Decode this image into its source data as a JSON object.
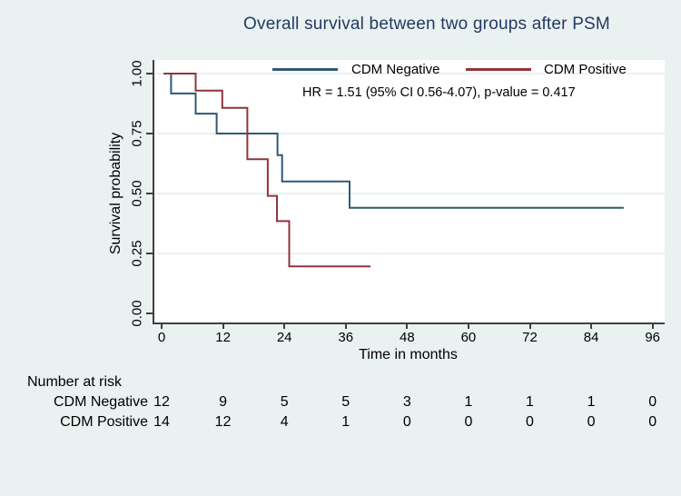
{
  "title": "Overall survival between two groups after PSM",
  "annotation": "HR = 1.51 (95% CI 0.56-4.07), p-value = 0.417",
  "colors": {
    "background": "#eaf1f1",
    "plot_background": "#ffffff",
    "gridline": "#e2edee",
    "axis": "#3f3f3f",
    "title_text": "#233a63",
    "cdm_negative": "#2f5875",
    "cdm_positive": "#90353b"
  },
  "chart_data": {
    "type": "line",
    "subtype": "kaplan-meier-step",
    "title": "Overall survival between two groups after PSM",
    "xlabel": "Time in months",
    "ylabel": "Survival probability",
    "xlim": [
      0,
      96
    ],
    "ylim": [
      0,
      1
    ],
    "x_ticks": [
      0,
      12,
      24,
      36,
      48,
      60,
      72,
      84,
      96
    ],
    "y_ticks": [
      {
        "value": 0.0,
        "label": "0.00"
      },
      {
        "value": 0.25,
        "label": "0.25"
      },
      {
        "value": 0.5,
        "label": "0.50"
      },
      {
        "value": 0.75,
        "label": "0.75"
      },
      {
        "value": 1.0,
        "label": "1.00"
      }
    ],
    "grid": "horizontal",
    "legend_position": "top-inside",
    "series": [
      {
        "name": "CDM Negative",
        "color": "#2f5875",
        "event_times": [
          0,
          1.5,
          6.3,
          10.4,
          22.3,
          23.2,
          36.4
        ],
        "survival": [
          1.0,
          0.917,
          0.833,
          0.75,
          0.66,
          0.55,
          0.44
        ],
        "end_time": 90
      },
      {
        "name": "CDM Positive",
        "color": "#90353b",
        "event_times": [
          0,
          6.3,
          11.5,
          16.4,
          20.4,
          22.2,
          24.6
        ],
        "survival": [
          1.0,
          0.929,
          0.857,
          0.643,
          0.49,
          0.385,
          0.196
        ],
        "end_time": 40.5
      }
    ]
  },
  "risk_table": {
    "heading": "Number at risk",
    "columns": [
      0,
      12,
      24,
      36,
      48,
      60,
      72,
      84,
      96
    ],
    "rows": [
      {
        "label": "CDM Negative",
        "values": [
          12,
          9,
          5,
          5,
          3,
          1,
          1,
          1,
          0
        ]
      },
      {
        "label": "CDM Positive",
        "values": [
          14,
          12,
          4,
          1,
          0,
          0,
          0,
          0,
          0
        ]
      }
    ]
  }
}
